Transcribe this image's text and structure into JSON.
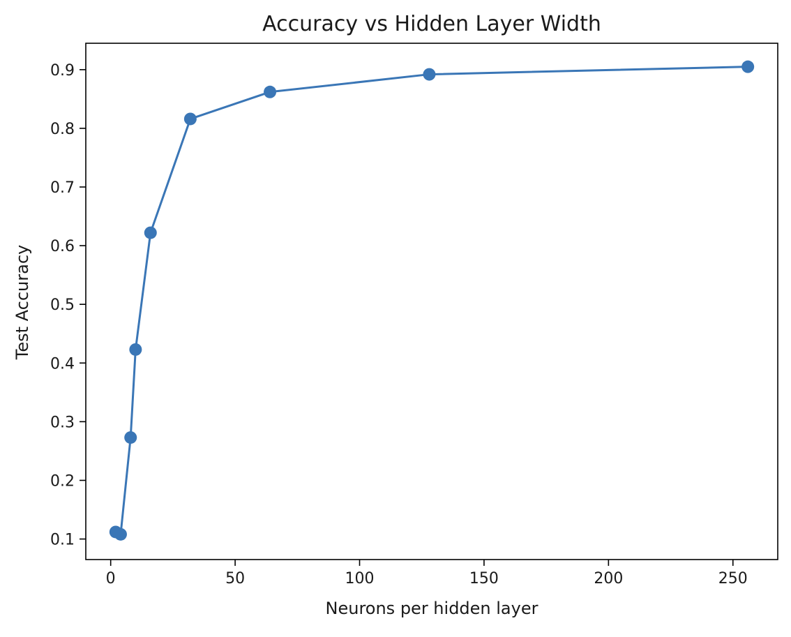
{
  "chart_data": {
    "type": "line",
    "title": "Accuracy vs Hidden Layer Width",
    "xlabel": "Neurons per hidden layer",
    "ylabel": "Test Accuracy",
    "xlim": [
      -10,
      268
    ],
    "ylim": [
      0.065,
      0.945
    ],
    "xticks": [
      0,
      50,
      100,
      150,
      200,
      250
    ],
    "yticks": [
      0.1,
      0.2,
      0.3,
      0.4,
      0.5,
      0.6,
      0.7,
      0.8,
      0.9
    ],
    "x_tick_labels": [
      "0",
      "50",
      "100",
      "150",
      "200",
      "250"
    ],
    "y_tick_labels": [
      "0.1",
      "0.2",
      "0.3",
      "0.4",
      "0.5",
      "0.6",
      "0.7",
      "0.8",
      "0.9"
    ],
    "grid": false,
    "legend": false,
    "series": [
      {
        "color": "#3a76b6",
        "marker": "circle",
        "x": [
          2,
          4,
          8,
          10,
          16,
          32,
          64,
          128,
          256
        ],
        "y": [
          0.112,
          0.108,
          0.273,
          0.423,
          0.622,
          0.816,
          0.862,
          0.892,
          0.905
        ]
      }
    ]
  }
}
